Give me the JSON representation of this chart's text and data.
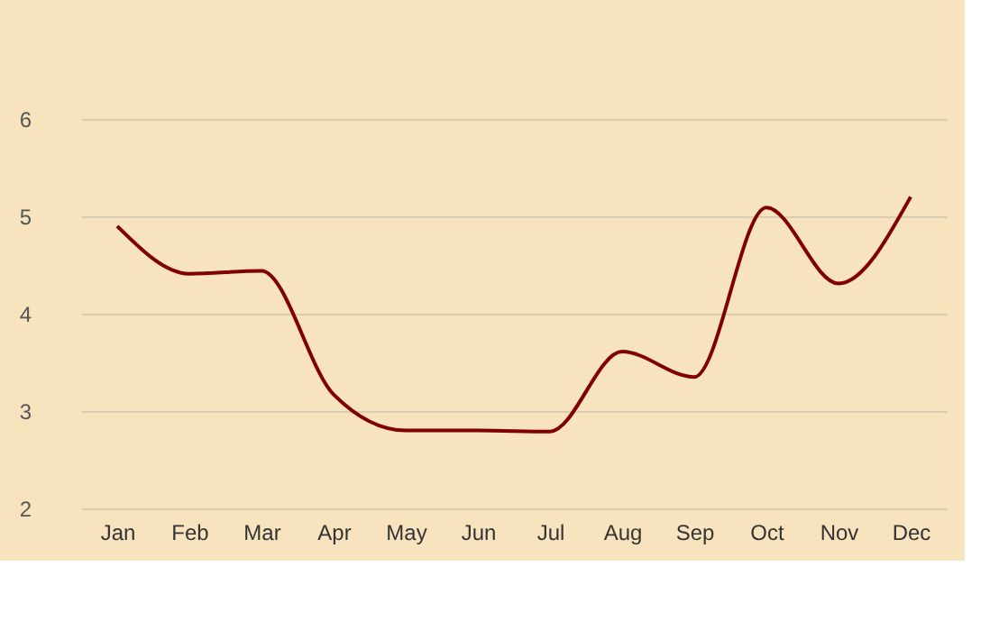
{
  "chart_data": {
    "type": "line",
    "categories": [
      "Jan",
      "Feb",
      "Mar",
      "Apr",
      "May",
      "Jun",
      "Jul",
      "Aug",
      "Sep",
      "Oct",
      "Nov",
      "Dec"
    ],
    "series": [
      {
        "color": "#800000",
        "values": [
          4.9,
          4.41,
          4.44,
          3.17,
          2.8,
          2.8,
          2.79,
          3.61,
          3.35,
          5.09,
          4.31,
          5.2
        ]
      }
    ],
    "ylim": [
      2,
      6
    ],
    "yticks": [
      2,
      3,
      4,
      5,
      6
    ],
    "grid": "y",
    "marker": "none",
    "line_style": "solid"
  }
}
